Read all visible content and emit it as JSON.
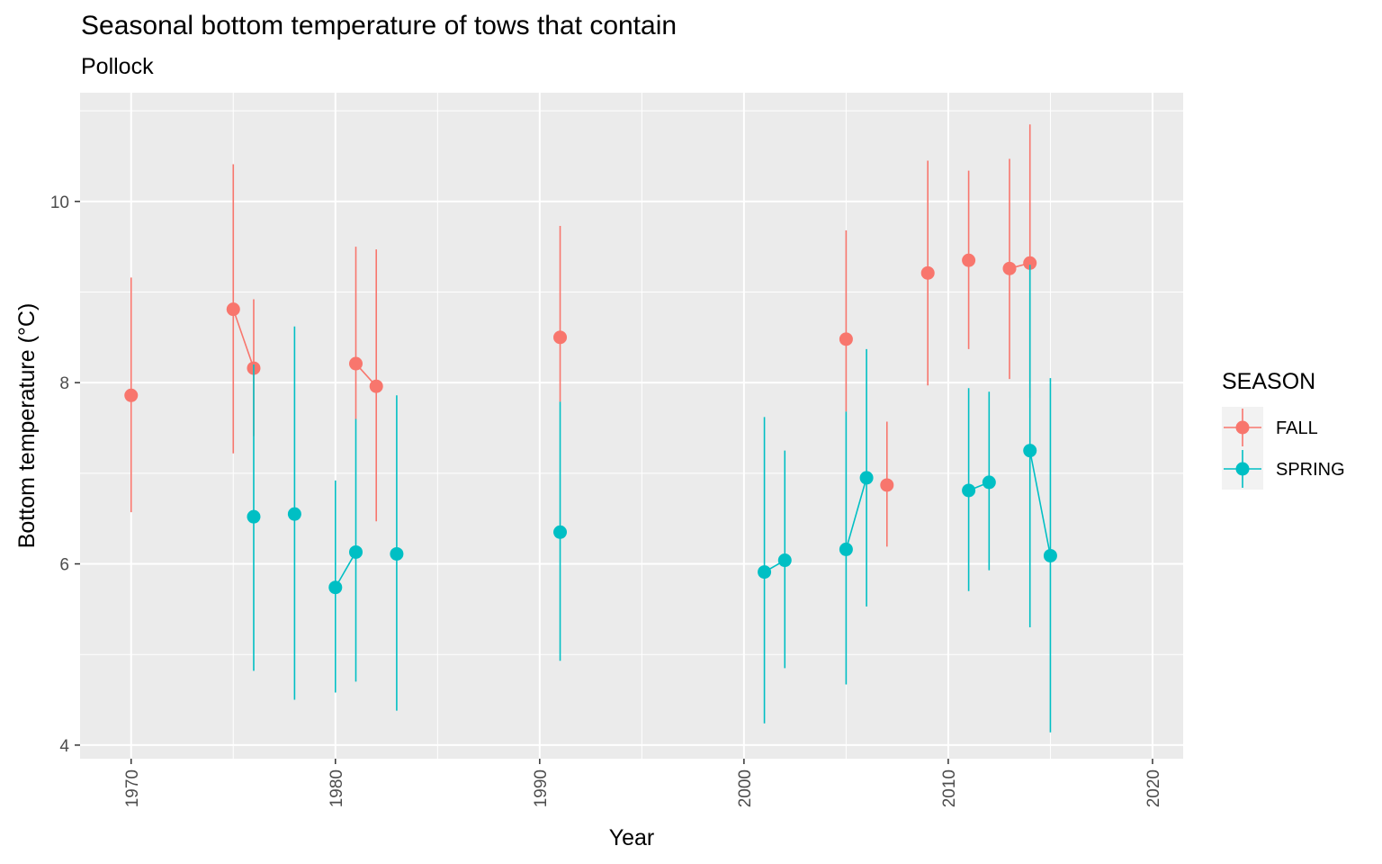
{
  "chart_data": {
    "type": "scatter",
    "title": "Seasonal bottom temperature of tows that contain",
    "subtitle": "Pollock",
    "xlabel": "Year",
    "ylabel": "Bottom temperature (°C)",
    "xlim": [
      1967.5,
      2021.5
    ],
    "ylim": [
      3.85,
      11.2
    ],
    "x_ticks": [
      1970,
      1980,
      1990,
      2000,
      2010,
      2020
    ],
    "y_ticks": [
      4,
      6,
      8,
      10
    ],
    "grid": true,
    "legend": {
      "title": "SEASON",
      "position": "right"
    },
    "series": [
      {
        "name": "FALL",
        "color": "#F8766D",
        "points": [
          {
            "x": 1970,
            "y": 7.86,
            "ymin": 6.57,
            "ymax": 9.16
          },
          {
            "x": 1975,
            "y": 8.81,
            "ymin": 7.22,
            "ymax": 10.41
          },
          {
            "x": 1976,
            "y": 8.16,
            "ymin": 7.41,
            "ymax": 8.92
          },
          {
            "x": 1981,
            "y": 8.21,
            "ymin": 7.6,
            "ymax": 9.5
          },
          {
            "x": 1982,
            "y": 7.96,
            "ymin": 6.47,
            "ymax": 9.47
          },
          {
            "x": 1991,
            "y": 8.5,
            "ymin": 7.79,
            "ymax": 9.73
          },
          {
            "x": 2005,
            "y": 8.48,
            "ymin": 7.68,
            "ymax": 9.68
          },
          {
            "x": 2007,
            "y": 6.87,
            "ymin": 6.19,
            "ymax": 7.57
          },
          {
            "x": 2009,
            "y": 9.21,
            "ymin": 7.97,
            "ymax": 10.45
          },
          {
            "x": 2011,
            "y": 9.35,
            "ymin": 8.37,
            "ymax": 10.34
          },
          {
            "x": 2013,
            "y": 9.26,
            "ymin": 8.04,
            "ymax": 10.47
          },
          {
            "x": 2014,
            "y": 9.32,
            "ymin": 7.83,
            "ymax": 10.85
          }
        ]
      },
      {
        "name": "SPRING",
        "color": "#00BFC4",
        "points": [
          {
            "x": 1976,
            "y": 6.52,
            "ymin": 4.82,
            "ymax": 8.2
          },
          {
            "x": 1978,
            "y": 6.55,
            "ymin": 4.5,
            "ymax": 8.62
          },
          {
            "x": 1980,
            "y": 5.74,
            "ymin": 4.58,
            "ymax": 6.92
          },
          {
            "x": 1981,
            "y": 6.13,
            "ymin": 4.7,
            "ymax": 7.6
          },
          {
            "x": 1983,
            "y": 6.11,
            "ymin": 4.38,
            "ymax": 7.86
          },
          {
            "x": 1991,
            "y": 6.35,
            "ymin": 4.93,
            "ymax": 7.79
          },
          {
            "x": 2001,
            "y": 5.91,
            "ymin": 4.24,
            "ymax": 7.62
          },
          {
            "x": 2002,
            "y": 6.04,
            "ymin": 4.85,
            "ymax": 7.25
          },
          {
            "x": 2005,
            "y": 6.16,
            "ymin": 4.67,
            "ymax": 7.68
          },
          {
            "x": 2006,
            "y": 6.95,
            "ymin": 5.53,
            "ymax": 8.37
          },
          {
            "x": 2011,
            "y": 6.81,
            "ymin": 5.7,
            "ymax": 7.94
          },
          {
            "x": 2012,
            "y": 6.9,
            "ymin": 5.93,
            "ymax": 7.9
          },
          {
            "x": 2014,
            "y": 7.25,
            "ymin": 5.3,
            "ymax": 9.3
          },
          {
            "x": 2015,
            "y": 6.09,
            "ymin": 4.14,
            "ymax": 8.05
          }
        ]
      }
    ]
  }
}
